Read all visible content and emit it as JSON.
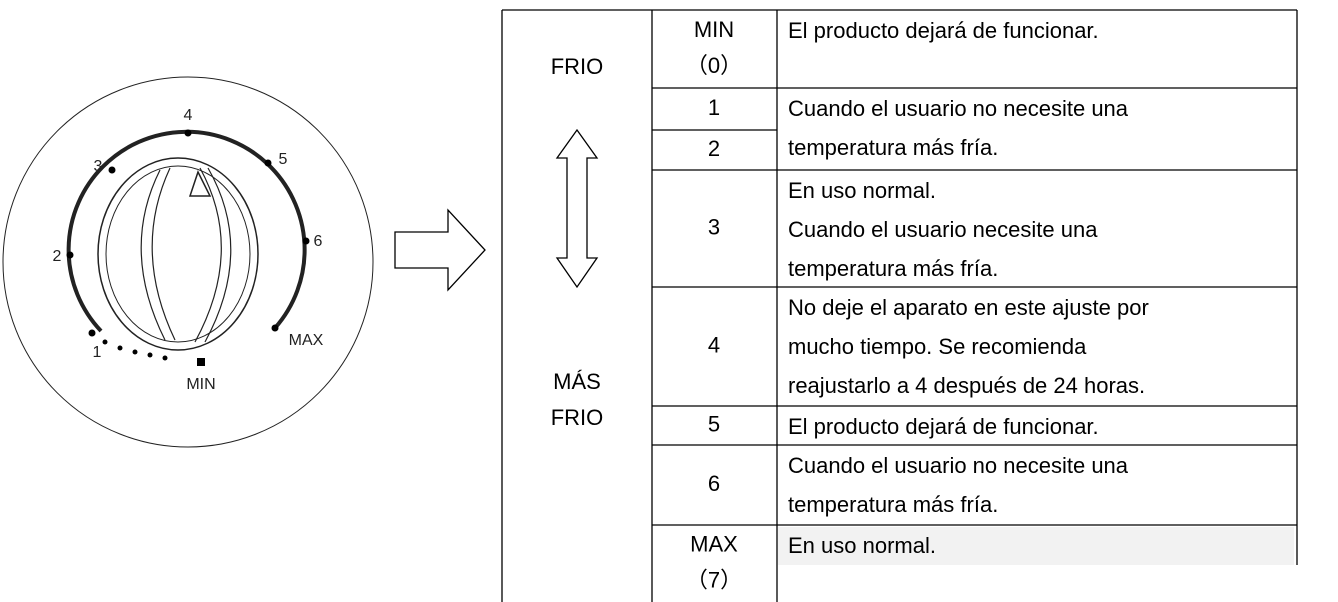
{
  "dial": {
    "labels": [
      "1",
      "2",
      "3",
      "4",
      "5",
      "6",
      "MAX",
      "MIN"
    ]
  },
  "table": {
    "side": {
      "top": "FRIO",
      "bottom": [
        "MÁS",
        "FRIO"
      ]
    },
    "settings": [
      [
        "MIN",
        "（0）"
      ],
      [
        "1"
      ],
      [
        "2"
      ],
      [
        "3"
      ],
      [
        "4"
      ],
      [
        "5"
      ],
      [
        "6"
      ],
      [
        "MAX",
        "（7）"
      ]
    ],
    "descriptions": [
      [
        "El producto dejará de funcionar."
      ],
      [
        "Cuando el usuario no necesite una",
        "temperatura más fría."
      ],
      [
        "En uso normal.",
        "Cuando el usuario necesite una",
        "temperatura más fría."
      ],
      [
        "No deje el aparato en este ajuste por",
        "mucho tiempo. Se recomienda",
        "reajustarlo a 4 después de 24 horas."
      ],
      [
        "El producto dejará de funcionar."
      ],
      [
        "Cuando el usuario no necesite una",
        "temperatura más fría."
      ],
      [
        "En uso normal."
      ]
    ]
  }
}
